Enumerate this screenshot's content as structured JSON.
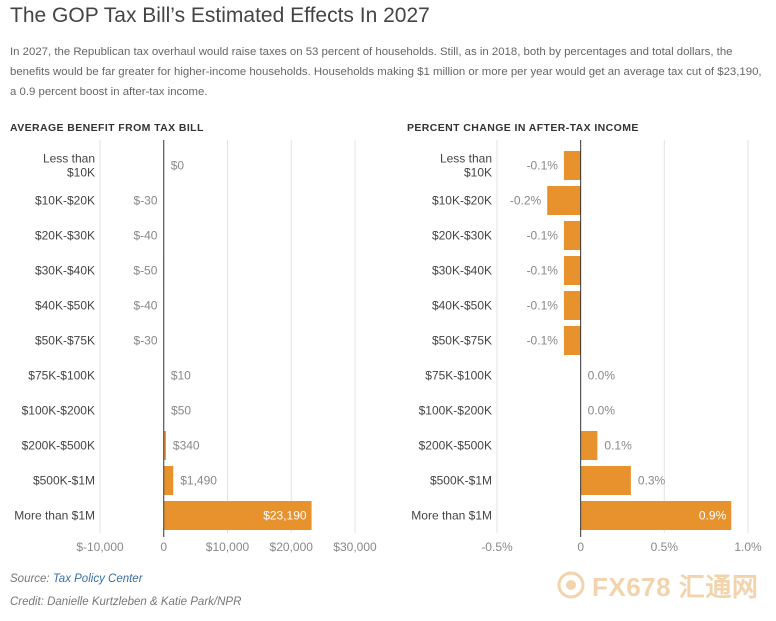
{
  "title": "The GOP Tax Bill’s Estimated Effects In 2027",
  "subtitle": "In 2027, the Republican tax overhaul would raise taxes on 53 percent of households. Still, as in 2018, both by percentages and total dollars, the benefits would be far greater for higher-income households. Households making $1 million or more per year would get an average tax cut of $23,190, a 0.9 percent boost in after-tax income.",
  "colors": {
    "bar": "#e8922e",
    "axis": "#333333",
    "grid": "#e3e3e3",
    "label": "#888888"
  },
  "chart_data": [
    {
      "type": "bar",
      "orientation": "horizontal",
      "title": "AVERAGE BENEFIT FROM TAX BILL",
      "categories": [
        [
          "Less than",
          "$10K"
        ],
        "$10K-$20K",
        "$20K-$30K",
        "$30K-$40K",
        "$40K-$50K",
        "$50K-$75K",
        "$75K-$100K",
        "$100K-$200K",
        "$200K-$500K",
        "$500K-$1M",
        "More than $1M"
      ],
      "values": [
        0,
        -30,
        -40,
        -50,
        -40,
        -30,
        10,
        50,
        340,
        1490,
        23190
      ],
      "value_labels": [
        "$0",
        "$-30",
        "$-40",
        "$-50",
        "$-40",
        "$-30",
        "$10",
        "$50",
        "$340",
        "$1,490",
        "$23,190"
      ],
      "xlim": [
        -10000,
        30000
      ],
      "xticks": [
        -10000,
        0,
        10000,
        20000,
        30000
      ],
      "xtick_labels": [
        "$-10,000",
        "0",
        "$10,000",
        "$20,000",
        "$30,000"
      ],
      "grid": true
    },
    {
      "type": "bar",
      "orientation": "horizontal",
      "title": "PERCENT CHANGE IN AFTER-TAX INCOME",
      "categories": [
        [
          "Less than",
          "$10K"
        ],
        "$10K-$20K",
        "$20K-$30K",
        "$30K-$40K",
        "$40K-$50K",
        "$50K-$75K",
        "$75K-$100K",
        "$100K-$200K",
        "$200K-$500K",
        "$500K-$1M",
        "More than $1M"
      ],
      "values": [
        -0.1,
        -0.2,
        -0.1,
        -0.1,
        -0.1,
        -0.1,
        0.0,
        0.0,
        0.1,
        0.3,
        0.9
      ],
      "value_labels": [
        "-0.1%",
        "-0.2%",
        "-0.1%",
        "-0.1%",
        "-0.1%",
        "-0.1%",
        "0.0%",
        "0.0%",
        "0.1%",
        "0.3%",
        "0.9%"
      ],
      "xlim": [
        -0.5,
        1.0
      ],
      "xticks": [
        -0.5,
        0,
        0.5,
        1.0
      ],
      "xtick_labels": [
        "-0.5%",
        "0",
        "0.5%",
        "1.0%"
      ],
      "grid": true
    }
  ],
  "footer": {
    "source_label": "Source: ",
    "source_link": "Tax Policy Center",
    "credit": "Credit: Danielle Kurtzleben & Katie Park/NPR"
  },
  "watermark": {
    "text": "FX678 汇通网",
    "icon": "fx678-logo-icon"
  }
}
